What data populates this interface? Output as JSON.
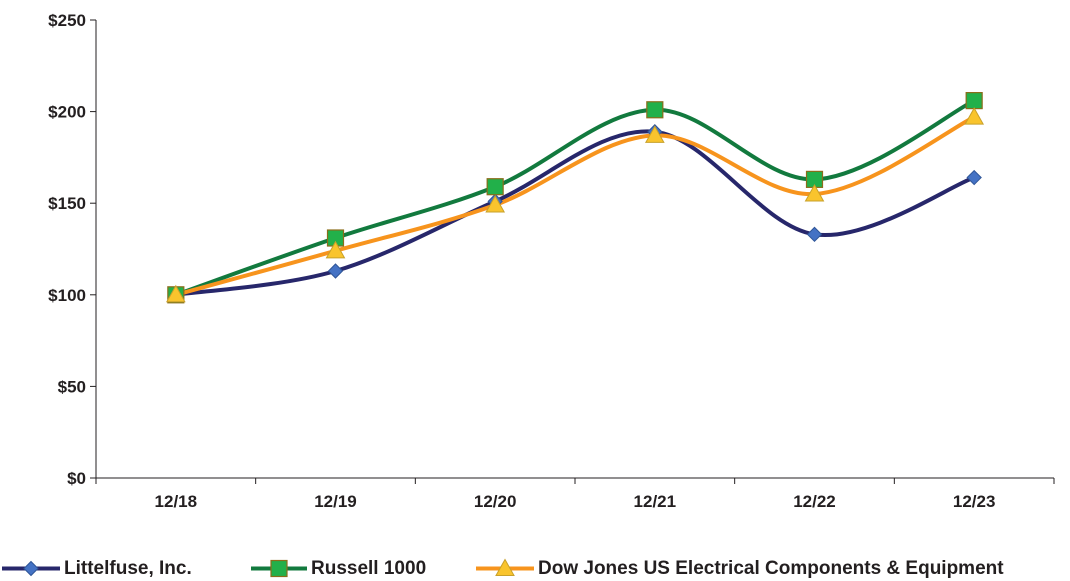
{
  "chart_data": {
    "type": "line",
    "categories": [
      "12/18",
      "12/19",
      "12/20",
      "12/21",
      "12/22",
      "12/23"
    ],
    "ylim": [
      0,
      250
    ],
    "yticks": [
      0,
      50,
      100,
      150,
      200,
      250
    ],
    "ytick_labels": [
      "$0",
      "$50",
      "$100",
      "$150",
      "$200",
      "$250"
    ],
    "grid": false,
    "legend_position": "bottom",
    "series": [
      {
        "name": "Littelfuse, Inc.",
        "values": [
          100,
          113,
          151,
          189,
          133,
          164
        ],
        "color": "#27276b",
        "marker": "diamond",
        "marker_color": "#4472c4"
      },
      {
        "name": "Russell 1000",
        "values": [
          100,
          131,
          159,
          201,
          163,
          206
        ],
        "color": "#127a3e",
        "marker": "square",
        "marker_color": "#22b04a"
      },
      {
        "name": "Dow Jones US Electrical Components & Equipment",
        "values": [
          100,
          124,
          149,
          187,
          155,
          197
        ],
        "color": "#f7941d",
        "marker": "triangle",
        "marker_color": "#f9c42d"
      }
    ]
  }
}
